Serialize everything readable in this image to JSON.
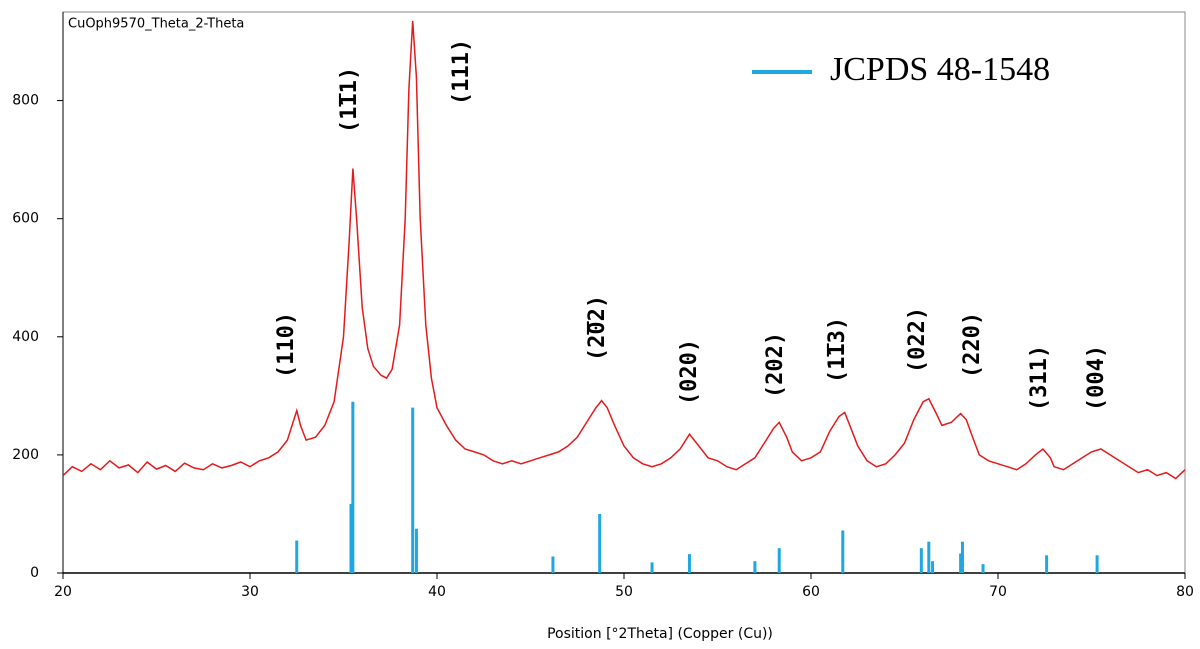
{
  "chart_data": {
    "type": "line",
    "title": "CuOph9570_Theta_2-Theta",
    "x_label": "Position [°2Theta] (Copper (Cu))",
    "xlim": [
      20,
      80
    ],
    "xticks": [
      20,
      30,
      40,
      50,
      60,
      70,
      80
    ],
    "ylim": [
      0,
      950
    ],
    "yticks": [
      0,
      200,
      400,
      600,
      800
    ],
    "series": [
      {
        "color": "#e41a1c",
        "x": [
          20,
          20.5,
          21,
          21.5,
          22,
          22.5,
          23,
          23.5,
          24,
          24.5,
          25,
          25.5,
          26,
          26.5,
          27,
          27.5,
          28,
          28.5,
          29,
          29.5,
          30,
          30.5,
          31,
          31.5,
          32,
          32.3,
          32.5,
          32.7,
          33,
          33.5,
          34,
          34.5,
          35,
          35.3,
          35.5,
          35.7,
          36,
          36.3,
          36.6,
          37,
          37.3,
          37.6,
          38,
          38.3,
          38.5,
          38.7,
          38.9,
          39.1,
          39.4,
          39.7,
          40,
          40.5,
          41,
          41.5,
          42,
          42.5,
          43,
          43.5,
          44,
          44.5,
          45,
          45.5,
          46,
          46.5,
          47,
          47.5,
          48,
          48.5,
          48.8,
          49.1,
          49.5,
          50,
          50.5,
          51,
          51.5,
          52,
          52.5,
          53,
          53.5,
          54,
          54.5,
          55,
          55.5,
          56,
          56.5,
          57,
          57.5,
          58,
          58.3,
          58.7,
          59,
          59.5,
          60,
          60.5,
          61,
          61.5,
          61.8,
          62.2,
          62.5,
          63,
          63.5,
          64,
          64.5,
          65,
          65.5,
          66,
          66.3,
          66.7,
          67,
          67.5,
          68,
          68.3,
          68.7,
          69,
          69.5,
          70,
          70.5,
          71,
          71.5,
          72,
          72.4,
          72.8,
          73,
          73.5,
          74,
          74.5,
          75,
          75.5,
          76,
          76.5,
          77,
          77.5,
          78,
          78.5,
          79,
          79.5,
          80
        ],
        "values": [
          165,
          180,
          172,
          185,
          175,
          190,
          178,
          183,
          170,
          188,
          176,
          182,
          172,
          186,
          178,
          175,
          185,
          178,
          182,
          188,
          180,
          190,
          195,
          205,
          225,
          255,
          275,
          250,
          225,
          230,
          250,
          290,
          400,
          560,
          685,
          600,
          450,
          380,
          350,
          335,
          330,
          345,
          420,
          600,
          820,
          935,
          840,
          600,
          420,
          330,
          280,
          250,
          225,
          210,
          205,
          200,
          190,
          185,
          190,
          185,
          190,
          195,
          200,
          205,
          215,
          230,
          255,
          280,
          292,
          280,
          250,
          215,
          195,
          185,
          180,
          185,
          195,
          210,
          235,
          215,
          195,
          190,
          180,
          175,
          185,
          195,
          220,
          245,
          255,
          230,
          205,
          190,
          195,
          205,
          240,
          265,
          272,
          240,
          215,
          190,
          180,
          185,
          200,
          220,
          260,
          290,
          295,
          270,
          250,
          255,
          270,
          260,
          225,
          200,
          190,
          185,
          180,
          175,
          185,
          200,
          210,
          195,
          180,
          175,
          185,
          195,
          205,
          210,
          200,
          190,
          180,
          170,
          175,
          165,
          170,
          160,
          175
        ]
      },
      {
        "name": "JCPDS 48-1548",
        "color": "#1ea7e0",
        "style": "stem",
        "x": [
          32.5,
          35.4,
          35.5,
          38.7,
          38.9,
          46.2,
          48.7,
          51.5,
          53.5,
          57.0,
          58.3,
          61.7,
          65.9,
          66.3,
          66.5,
          68.0,
          68.1,
          69.2,
          72.6,
          75.3
        ],
        "values": [
          55,
          117,
          290,
          280,
          75,
          28,
          100,
          18,
          32,
          20,
          42,
          72,
          42,
          53,
          20,
          33,
          53,
          15,
          30,
          30
        ]
      }
    ],
    "annotations": [
      "(110)",
      "(1̅11)",
      "(111)",
      "(2̅02)",
      "(020)",
      "(202)",
      "(1̅13)",
      "(022)",
      "(220)",
      "(311)",
      "(004)"
    ]
  }
}
